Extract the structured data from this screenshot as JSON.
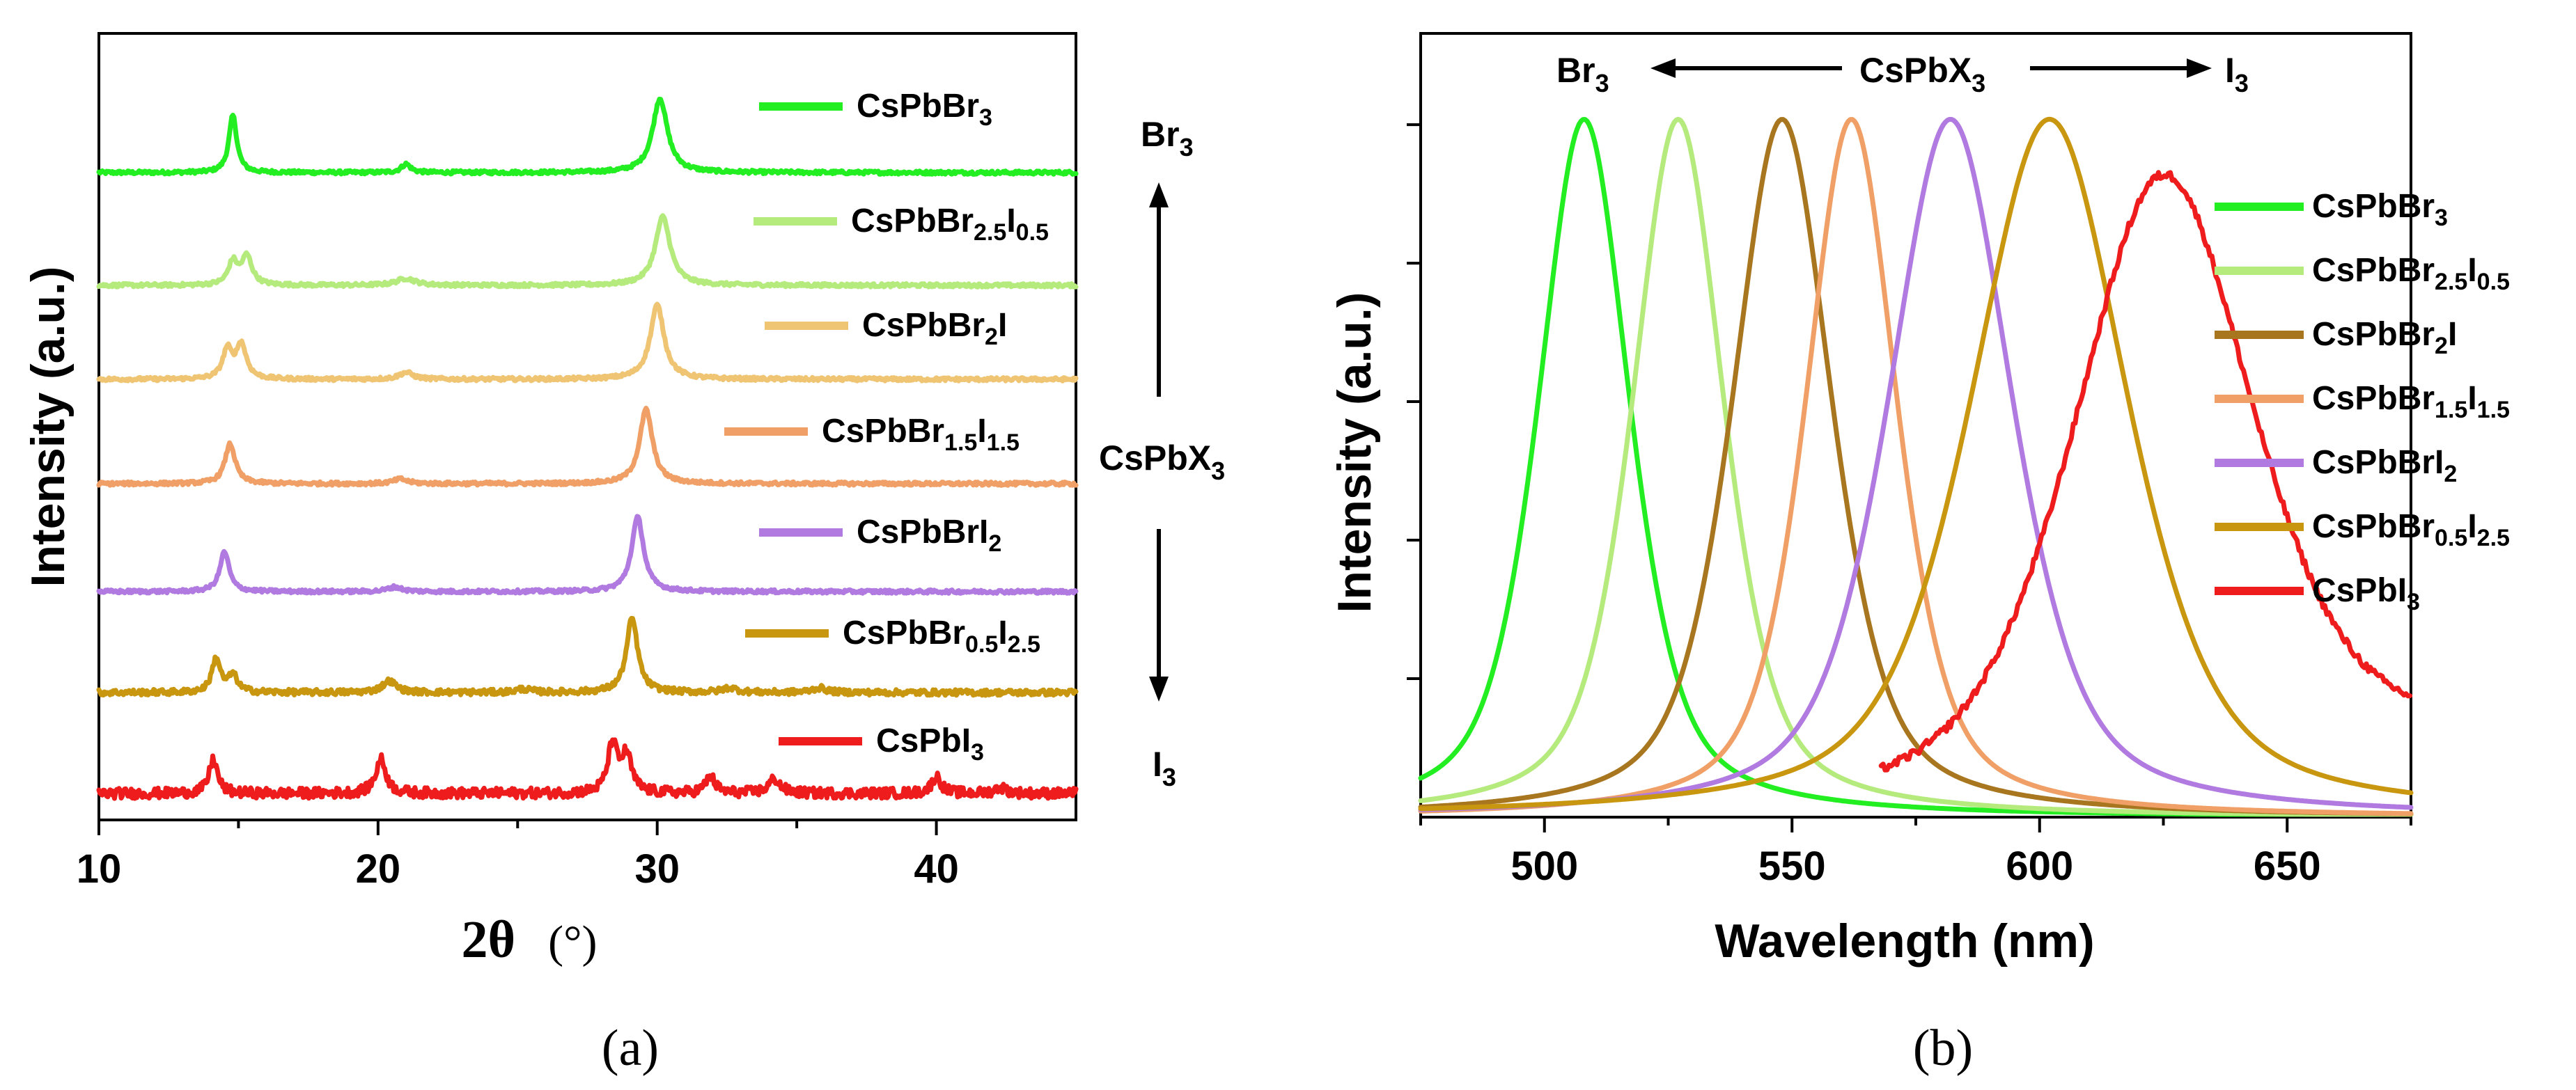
{
  "chart_data": [
    {
      "type": "line",
      "panel_label": "(a)",
      "xlabel": "2θ",
      "xlabel_unit": "(°)",
      "ylabel": "Intensity (a.u.)",
      "xlim": [
        10,
        45
      ],
      "xticks": [
        10,
        20,
        30,
        40
      ],
      "y_ticks_shown": false,
      "series": [
        {
          "name": "CsPbBr3",
          "label_main": "CsPbBr",
          "label_parts": [
            [
              "3",
              "sub"
            ]
          ],
          "color": "#22ee22",
          "offset": 6,
          "noise": 0.03,
          "peaks": [
            [
              14.8,
              1.0,
              0.17
            ],
            [
              21.0,
              0.15,
              0.2
            ],
            [
              30.1,
              1.3,
              0.32
            ]
          ]
        },
        {
          "name": "CsPbBr2.5I0.5",
          "label_main": "CsPbBr",
          "label_parts": [
            [
              "2.5",
              "sub"
            ],
            [
              "I",
              ""
            ],
            [
              "0.5",
              "sub"
            ]
          ],
          "color": "#b5ea7d",
          "offset": 5,
          "noise": 0.03,
          "peaks": [
            [
              14.8,
              0.4,
              0.2
            ],
            [
              15.3,
              0.5,
              0.22
            ],
            [
              21.0,
              0.12,
              0.4
            ],
            [
              30.2,
              1.2,
              0.32
            ]
          ]
        },
        {
          "name": "CsPbBr2I",
          "label_main": "CsPbBr",
          "label_parts": [
            [
              "2",
              "sub"
            ],
            [
              "I",
              ""
            ]
          ],
          "color": "#efc472",
          "offset": 4,
          "noise": 0.03,
          "peaks": [
            [
              14.6,
              0.5,
              0.2
            ],
            [
              15.1,
              0.6,
              0.22
            ],
            [
              21.0,
              0.12,
              0.3
            ],
            [
              30.0,
              1.3,
              0.3
            ]
          ]
        },
        {
          "name": "CsPbBr1.5I1.5",
          "label_main": "CsPbBr",
          "label_parts": [
            [
              "1.5",
              "sub"
            ],
            [
              "I",
              ""
            ],
            [
              "1.5",
              "sub"
            ]
          ],
          "color": "#f0a066",
          "offset": 3,
          "noise": 0.03,
          "peaks": [
            [
              14.7,
              0.7,
              0.22
            ],
            [
              20.8,
              0.08,
              0.3
            ],
            [
              29.6,
              1.3,
              0.28
            ]
          ]
        },
        {
          "name": "CsPbBrI2",
          "label_main": "CsPbBrI",
          "label_parts": [
            [
              "2",
              "sub"
            ]
          ],
          "color": "#b07ae0",
          "offset": 2,
          "noise": 0.03,
          "peaks": [
            [
              14.5,
              0.7,
              0.2
            ],
            [
              20.6,
              0.08,
              0.3
            ],
            [
              29.3,
              1.3,
              0.26
            ]
          ]
        },
        {
          "name": "CsPbBr0.5I2.5",
          "label_main": "CsPbBr",
          "label_parts": [
            [
              "0.5",
              "sub"
            ],
            [
              "I",
              ""
            ],
            [
              "2.5",
              "sub"
            ]
          ],
          "color": "#c8960f",
          "offset": 1,
          "noise": 0.05,
          "peaks": [
            [
              14.2,
              0.6,
              0.18
            ],
            [
              14.8,
              0.3,
              0.2
            ],
            [
              20.4,
              0.2,
              0.3
            ],
            [
              25.2,
              0.06,
              0.3
            ],
            [
              29.1,
              1.3,
              0.24
            ],
            [
              32.6,
              0.08,
              0.3
            ],
            [
              35.8,
              0.08,
              0.3
            ]
          ]
        },
        {
          "name": "CsPbI3",
          "label_main": "CsPbI",
          "label_parts": [
            [
              "3",
              "sub"
            ]
          ],
          "color": "#ee1c1c",
          "offset": 0,
          "noise": 0.09,
          "peaks": [
            [
              14.1,
              0.6,
              0.18
            ],
            [
              20.1,
              0.6,
              0.22
            ],
            [
              28.4,
              0.85,
              0.2
            ],
            [
              28.9,
              0.65,
              0.22
            ],
            [
              31.9,
              0.3,
              0.2
            ],
            [
              34.2,
              0.25,
              0.25
            ],
            [
              40.0,
              0.3,
              0.2
            ],
            [
              42.3,
              0.1,
              0.25
            ]
          ]
        }
      ],
      "annotations": {
        "top_label": "Br",
        "top_sub": "3",
        "middle_label": "CsPbX",
        "middle_sub": "3",
        "bottom_label": "I",
        "bottom_sub": "3"
      }
    },
    {
      "type": "line",
      "panel_label": "(b)",
      "xlabel": "Wavelength (nm)",
      "ylabel": "Intensity (a.u.)",
      "xlim": [
        475,
        675
      ],
      "xticks": [
        500,
        550,
        600,
        650
      ],
      "ylim": [
        0,
        1.05
      ],
      "series": [
        {
          "name": "CsPbBr3",
          "label_main": "CsPbBr",
          "label_parts": [
            [
              "3",
              "sub"
            ]
          ],
          "color": "#22ee22",
          "peak_nm": 508,
          "fwhm_nm": 22,
          "baseline": 0.0
        },
        {
          "name": "CsPbBr2.5I0.5",
          "label_main": "CsPbBr",
          "label_parts": [
            [
              "2.5",
              "sub"
            ],
            [
              "I",
              ""
            ],
            [
              "0.5",
              "sub"
            ]
          ],
          "color": "#b5ea7d",
          "peak_nm": 527,
          "fwhm_nm": 22,
          "baseline": 0.0
        },
        {
          "name": "CsPbBr2I",
          "label_main": "CsPbBr",
          "label_parts": [
            [
              "2",
              "sub"
            ],
            [
              "I",
              ""
            ]
          ],
          "color": "#a8761f",
          "peak_nm": 548,
          "fwhm_nm": 24,
          "baseline": 0.0
        },
        {
          "name": "CsPbBr1.5I1.5",
          "label_main": "CsPbBr",
          "label_parts": [
            [
              "1.5",
              "sub"
            ],
            [
              "I",
              ""
            ],
            [
              "1.5",
              "sub"
            ]
          ],
          "color": "#f0a066",
          "peak_nm": 562,
          "fwhm_nm": 22,
          "baseline": 0.0
        },
        {
          "name": "CsPbBrI2",
          "label_main": "CsPbBrI",
          "label_parts": [
            [
              "2",
              "sub"
            ]
          ],
          "color": "#b07ae0",
          "peak_nm": 582,
          "fwhm_nm": 30,
          "baseline": 0.0
        },
        {
          "name": "CsPbBr0.5I2.5",
          "label_main": "CsPbBr",
          "label_parts": [
            [
              "0.5",
              "sub"
            ],
            [
              "I",
              ""
            ],
            [
              "2.5",
              "sub"
            ]
          ],
          "color": "#c8960f",
          "peak_nm": 602,
          "fwhm_nm": 38,
          "baseline": 0.0
        },
        {
          "name": "CsPbI3",
          "label_main": "CsPbI",
          "label_parts": [
            [
              "3",
              "sub"
            ]
          ],
          "color": "#ee1c1c",
          "peak_nm": 625,
          "fwhm_nm": 44,
          "baseline": 0.08,
          "x_start_nm": 568
        }
      ],
      "annotations": {
        "left_label": "Br",
        "left_sub": "3",
        "middle_label": "CsPbX",
        "middle_sub": "3",
        "right_label": "I",
        "right_sub": "3"
      }
    }
  ]
}
